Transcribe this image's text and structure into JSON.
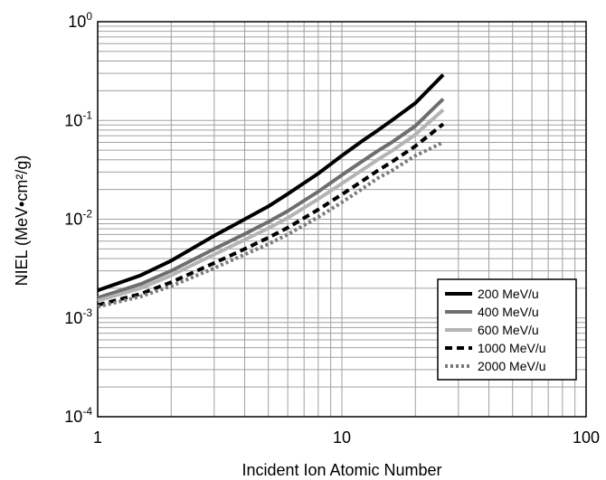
{
  "chart_data": {
    "type": "line",
    "title": "",
    "xlabel": "Incident Ion Atomic Number",
    "ylabel": "NIEL (MeV•cm²/g)",
    "x_scale": "log",
    "y_scale": "log",
    "xlim": [
      1,
      100
    ],
    "ylim": [
      0.0001,
      1
    ],
    "grid": true,
    "legend_position": "bottom-right",
    "x_ticks": [
      {
        "value": 1,
        "label": "1"
      },
      {
        "value": 10,
        "label": "10"
      },
      {
        "value": 100,
        "label": "100"
      }
    ],
    "y_ticks": [
      {
        "value": 1,
        "base": "10",
        "exp": "0"
      },
      {
        "value": 0.1,
        "base": "10",
        "exp": "-1"
      },
      {
        "value": 0.01,
        "base": "10",
        "exp": "-2"
      },
      {
        "value": 0.001,
        "base": "10",
        "exp": "-3"
      },
      {
        "value": 0.0001,
        "base": "10",
        "exp": "-4"
      }
    ],
    "x": [
      1,
      1.5,
      2,
      3,
      4,
      5,
      6,
      8,
      10,
      12,
      14,
      16,
      20,
      26
    ],
    "series": [
      {
        "name": "200 MeV/u",
        "color": "#000000",
        "dash": "solid",
        "values": [
          0.0019,
          0.0027,
          0.0038,
          0.0068,
          0.01,
          0.0135,
          0.018,
          0.029,
          0.044,
          0.061,
          0.079,
          0.1,
          0.15,
          0.29
        ]
      },
      {
        "name": "400 MeV/u",
        "color": "#6e6e6e",
        "dash": "solid",
        "values": [
          0.0016,
          0.0022,
          0.003,
          0.005,
          0.0071,
          0.0094,
          0.0121,
          0.019,
          0.028,
          0.038,
          0.049,
          0.06,
          0.088,
          0.165
        ]
      },
      {
        "name": "600 MeV/u",
        "color": "#b4b4b4",
        "dash": "solid",
        "values": [
          0.0015,
          0.002,
          0.0027,
          0.0044,
          0.0062,
          0.0081,
          0.0103,
          0.016,
          0.023,
          0.031,
          0.04,
          0.049,
          0.072,
          0.128
        ]
      },
      {
        "name": "1000 MeV/u",
        "color": "#000000",
        "dash": "dash",
        "values": [
          0.00135,
          0.00175,
          0.0023,
          0.0036,
          0.005,
          0.0065,
          0.0082,
          0.0125,
          0.0178,
          0.024,
          0.031,
          0.038,
          0.055,
          0.092
        ]
      },
      {
        "name": "2000 MeV/u",
        "color": "#7a7a7a",
        "dash": "dot",
        "values": [
          0.0013,
          0.00165,
          0.0021,
          0.0032,
          0.0044,
          0.0056,
          0.007,
          0.0105,
          0.0148,
          0.02,
          0.026,
          0.031,
          0.044,
          0.06
        ]
      }
    ]
  }
}
